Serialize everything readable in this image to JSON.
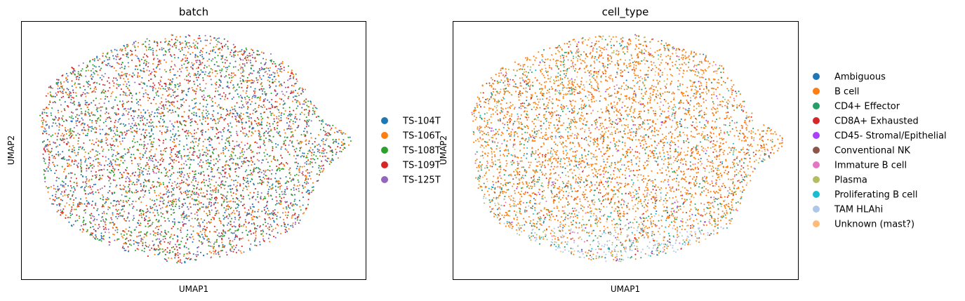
{
  "chart_data": [
    {
      "type": "scatter",
      "title": "batch",
      "xlabel": "UMAP1",
      "ylabel": "UMAP2",
      "ticks": false,
      "grid": false,
      "legend_position": "right",
      "series": [
        {
          "name": "TS-104T",
          "color": "#1f77b4",
          "weight": 1.0
        },
        {
          "name": "TS-106T",
          "color": "#ff7f0e",
          "weight": 1.0
        },
        {
          "name": "TS-108T",
          "color": "#2ca02c",
          "weight": 1.1
        },
        {
          "name": "TS-109T",
          "color": "#d62728",
          "weight": 1.1
        },
        {
          "name": "TS-125T",
          "color": "#9467bd",
          "weight": 0.6
        }
      ]
    },
    {
      "type": "scatter",
      "title": "cell_type",
      "xlabel": "UMAP1",
      "ylabel": "UMAP2",
      "ticks": false,
      "grid": false,
      "legend_position": "right",
      "series": [
        {
          "name": "Ambiguous",
          "color": "#1f77b4",
          "weight": 0.3
        },
        {
          "name": "B cell",
          "color": "#ff7f0e",
          "weight": 6.0
        },
        {
          "name": "CD4+ Effector",
          "color": "#279e68",
          "weight": 1.3
        },
        {
          "name": "CD8A+ Exhausted",
          "color": "#d62728",
          "weight": 0.5
        },
        {
          "name": "CD45- Stromal/Epithelial",
          "color": "#aa40fc",
          "weight": 0.15
        },
        {
          "name": "Conventional NK",
          "color": "#8c564b",
          "weight": 0.3
        },
        {
          "name": "Immature B cell",
          "color": "#e377c2",
          "weight": 0.4
        },
        {
          "name": "Plasma",
          "color": "#b5bd61",
          "weight": 1.0
        },
        {
          "name": "Proliferating B cell",
          "color": "#17becf",
          "weight": 0.5
        },
        {
          "name": "TAM HLAhi",
          "color": "#aec7e8",
          "weight": 0.7
        },
        {
          "name": "Unknown (mast?)",
          "color": "#ffbb78",
          "weight": 0.5
        }
      ]
    }
  ]
}
